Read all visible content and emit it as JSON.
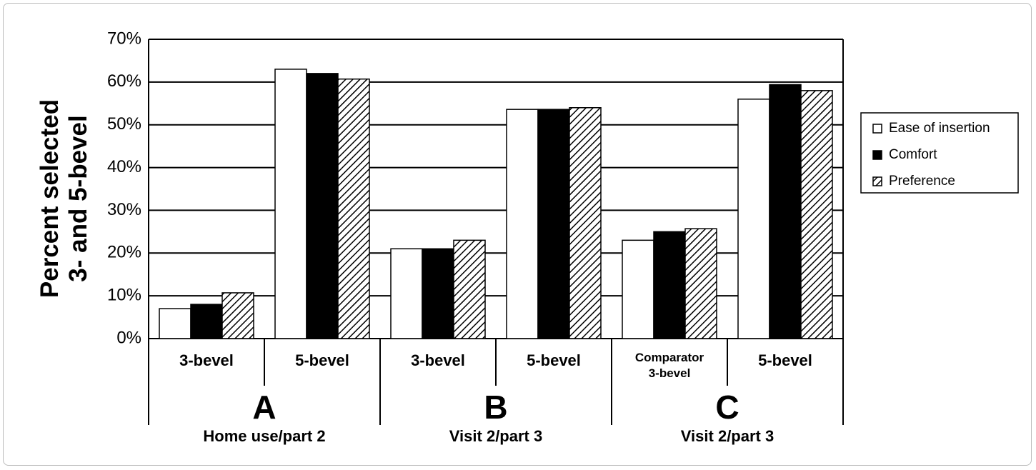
{
  "chart_data": {
    "type": "bar",
    "y_label": "Percent selected\n3- and 5-bevel",
    "categories": [
      "3-bevel",
      "5-bevel",
      "3-bevel",
      "5-bevel",
      "Comparator\n3-bevel",
      "5-bevel"
    ],
    "groups": [
      {
        "name": "A",
        "subtitle": "Home use/part 2"
      },
      {
        "name": "B",
        "subtitle": "Visit 2/part 3"
      },
      {
        "name": "C",
        "subtitle": "Visit 2/part 3"
      }
    ],
    "series": [
      {
        "name": "Ease of insertion",
        "color": "#ffffff",
        "values": [
          7,
          63,
          21,
          53.6,
          23,
          56
        ]
      },
      {
        "name": "Comfort",
        "color": "#000000",
        "values": [
          8,
          62,
          21,
          53.6,
          25,
          59.4
        ]
      },
      {
        "name": "Preference",
        "color": "#000000",
        "pattern": "hatch",
        "values": [
          10.7,
          60.7,
          23,
          54,
          25.7,
          58
        ]
      }
    ],
    "ylim": [
      0,
      70
    ],
    "yticks": [
      {
        "value": 0,
        "label": "0%"
      },
      {
        "value": 10,
        "label": "10%"
      },
      {
        "value": 20,
        "label": "20%"
      },
      {
        "value": 30,
        "label": "30%"
      },
      {
        "value": 40,
        "label": "40%"
      },
      {
        "value": 50,
        "label": "50%"
      },
      {
        "value": 60,
        "label": "60%"
      },
      {
        "value": 70,
        "label": "70%"
      }
    ],
    "grid": true,
    "legend": "right"
  }
}
